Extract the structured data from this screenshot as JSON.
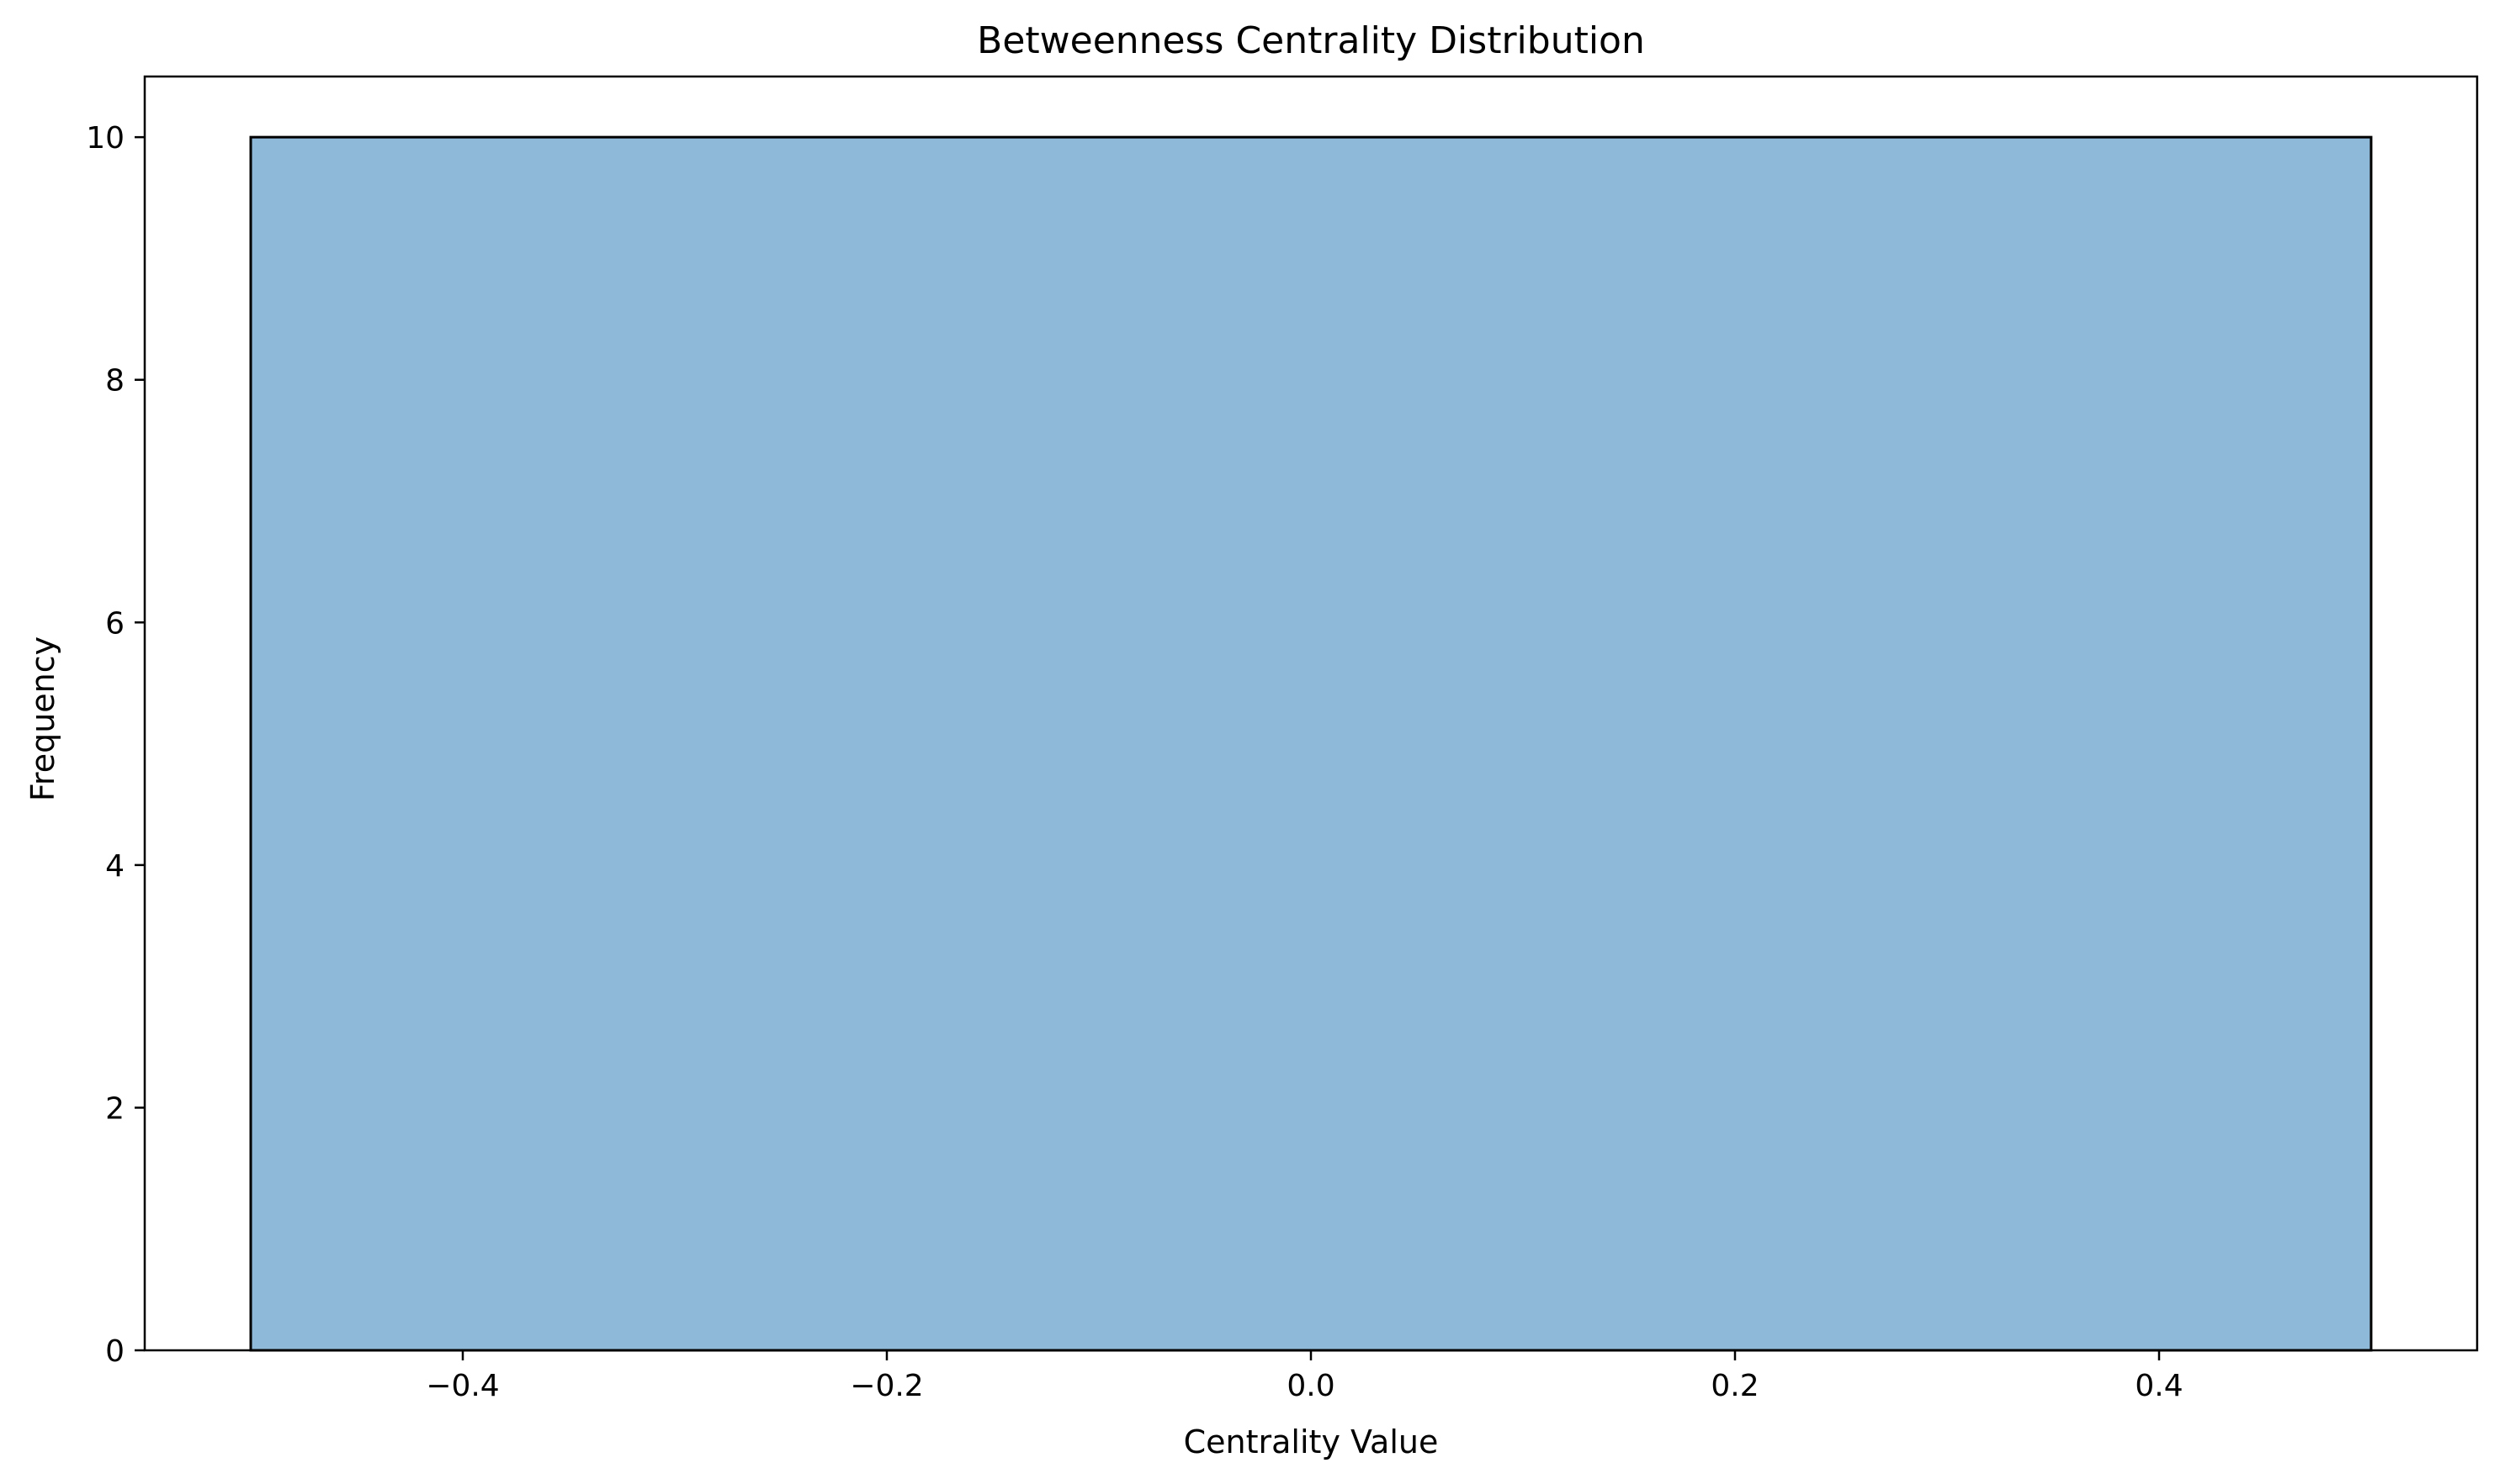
{
  "chart_data": {
    "type": "bar",
    "title": "Betweenness Centrality Distribution",
    "xlabel": "Centrality Value",
    "ylabel": "Frequency",
    "xlim": [
      -0.55,
      0.55
    ],
    "ylim": [
      0,
      10.5
    ],
    "xticks": [
      -0.4,
      -0.2,
      0.0,
      0.2,
      0.4
    ],
    "xtick_labels": [
      "−0.4",
      "−0.2",
      "0.0",
      "0.2",
      "0.4"
    ],
    "yticks": [
      0,
      2,
      4,
      6,
      8,
      10
    ],
    "ytick_labels": [
      "0",
      "2",
      "4",
      "6",
      "8",
      "10"
    ],
    "bins": [
      {
        "x0": -0.5,
        "x1": 0.5,
        "count": 10
      }
    ],
    "bar_color": "#8fb9d9",
    "edge_color": "#000000",
    "grid": false,
    "legend": false
  }
}
